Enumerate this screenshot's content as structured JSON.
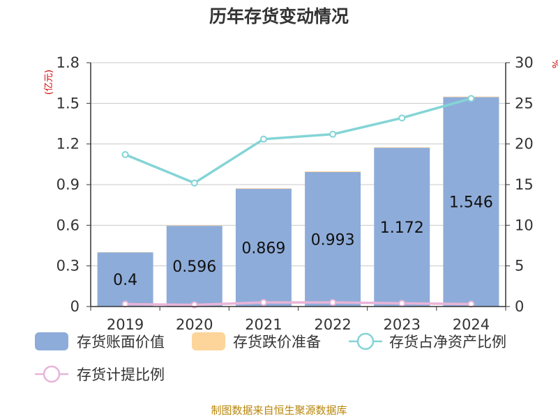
{
  "title": "历年存货变动情况",
  "source_note": "制图数据来自恒生聚源数据库",
  "left_unit": "(亿元)",
  "right_unit": "%",
  "colors": {
    "bar": "#8eacd9",
    "reserve": "#fdd49a",
    "ratio_line": "#84d4d6",
    "provision_line": "#e8b4d8",
    "axis": "#333333",
    "grid": "#c8c8c8"
  },
  "chart_data": {
    "type": "bar",
    "categories": [
      "2019",
      "2020",
      "2021",
      "2022",
      "2023",
      "2024"
    ],
    "series": [
      {
        "name": "存货账面价值",
        "axis": "left",
        "kind": "bar",
        "values": [
          0.4,
          0.596,
          0.869,
          0.993,
          1.172,
          1.546
        ],
        "labels": [
          "0.4",
          "0.596",
          "0.869",
          "0.993",
          "1.172",
          "1.546"
        ]
      },
      {
        "name": "存货跌价准备",
        "axis": "left",
        "kind": "bar-stack",
        "values": [
          0.002,
          0.003,
          0.004,
          0.005,
          0.004,
          0.004
        ]
      },
      {
        "name": "存货占净资产比例",
        "axis": "right",
        "kind": "line",
        "values": [
          18.7,
          15.2,
          20.6,
          21.2,
          23.2,
          25.6
        ]
      },
      {
        "name": "存货计提比例",
        "axis": "right",
        "kind": "line",
        "values": [
          0.3,
          0.2,
          0.5,
          0.5,
          0.4,
          0.3
        ]
      }
    ],
    "left_axis": {
      "ylim": [
        0,
        1.8
      ],
      "ticks": [
        "0",
        "0.3",
        "0.6",
        "0.9",
        "1.2",
        "1.5",
        "1.8"
      ]
    },
    "right_axis": {
      "ylim": [
        0,
        30
      ],
      "ticks": [
        "0",
        "5",
        "10",
        "15",
        "20",
        "25",
        "30"
      ]
    },
    "grid": true,
    "legend_position": "bottom"
  }
}
